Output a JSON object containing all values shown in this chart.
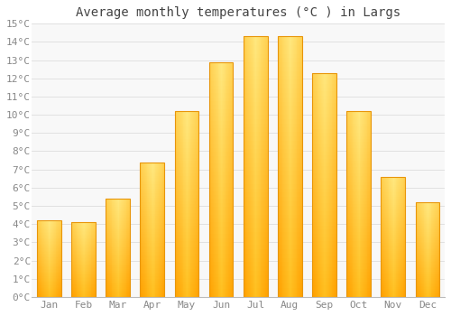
{
  "title": "Average monthly temperatures (°C ) in Largs",
  "months": [
    "Jan",
    "Feb",
    "Mar",
    "Apr",
    "May",
    "Jun",
    "Jul",
    "Aug",
    "Sep",
    "Oct",
    "Nov",
    "Dec"
  ],
  "values": [
    4.2,
    4.1,
    5.4,
    7.4,
    10.2,
    12.9,
    14.3,
    14.3,
    12.3,
    10.2,
    6.6,
    5.2
  ],
  "bar_color": "#FFA500",
  "bar_color_light": "#FFD966",
  "bar_edge_color": "#E8960A",
  "background_color": "#FFFFFF",
  "plot_bg_color": "#F8F8F8",
  "grid_color": "#DDDDDD",
  "ylim": [
    0,
    15
  ],
  "yticks": [
    0,
    1,
    2,
    3,
    4,
    5,
    6,
    7,
    8,
    9,
    10,
    11,
    12,
    13,
    14,
    15
  ],
  "title_fontsize": 10,
  "tick_fontsize": 8,
  "font_family": "monospace",
  "title_color": "#444444",
  "tick_color": "#888888",
  "bar_width": 0.7
}
